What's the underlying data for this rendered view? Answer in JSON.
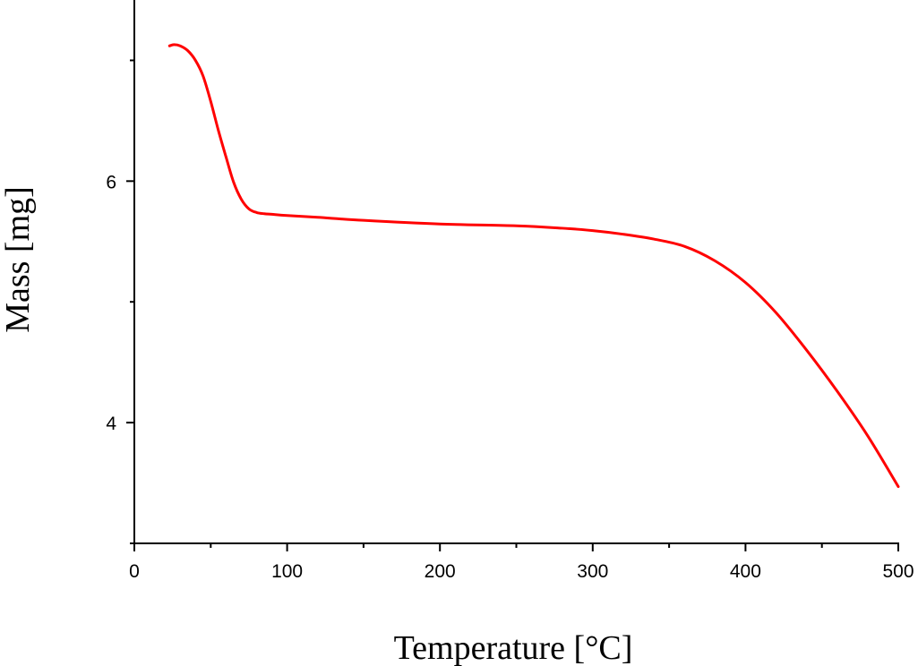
{
  "chart_data": {
    "type": "line",
    "xlabel": "Temperature [°C]",
    "ylabel": "Mass [mg]",
    "xlim": [
      0,
      500
    ],
    "ylim": [
      3.0,
      7.5
    ],
    "x_ticks": [
      0,
      100,
      200,
      300,
      400,
      500
    ],
    "x_minor_step": 50,
    "y_ticks": [
      4,
      6
    ],
    "y_minor_step": 1,
    "grid": false,
    "legend": "none",
    "series": [
      {
        "color": "#ff0000",
        "x": [
          23,
          26,
          30,
          35,
          40,
          45,
          50,
          55,
          60,
          65,
          70,
          75,
          80,
          85,
          90,
          100,
          120,
          150,
          200,
          250,
          280,
          300,
          320,
          340,
          360,
          380,
          400,
          420,
          440,
          460,
          480,
          500
        ],
        "y": [
          7.12,
          7.13,
          7.12,
          7.08,
          7.0,
          6.87,
          6.66,
          6.42,
          6.2,
          5.99,
          5.85,
          5.77,
          5.74,
          5.73,
          5.725,
          5.715,
          5.7,
          5.675,
          5.645,
          5.63,
          5.61,
          5.59,
          5.56,
          5.52,
          5.46,
          5.34,
          5.16,
          4.91,
          4.6,
          4.26,
          3.89,
          3.47
        ]
      }
    ]
  }
}
